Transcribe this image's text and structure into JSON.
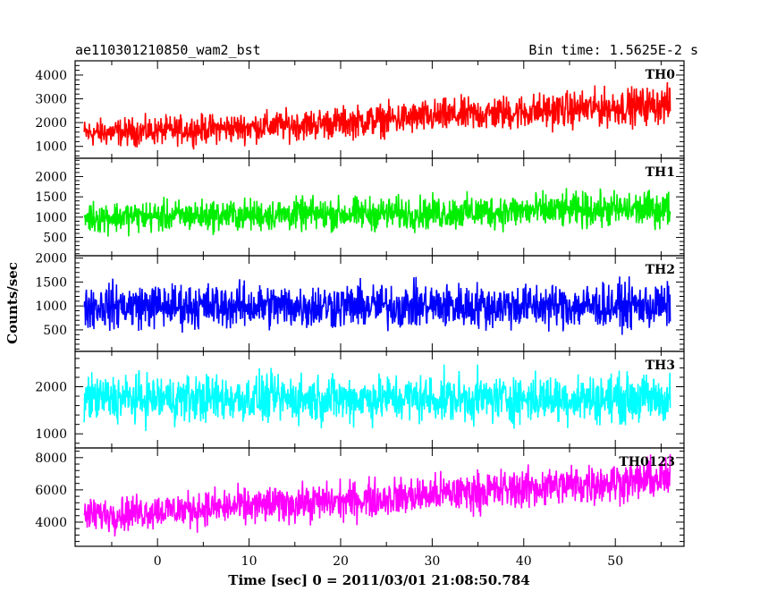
{
  "header": {
    "left_title": "ae110301210850_wam2_bst",
    "right_title": "Bin time: 1.5625E-2 s"
  },
  "chart_data": {
    "type": "line",
    "title": "ae110301210850_wam2_bst",
    "subtitle": "Bin time: 1.5625E-2 s",
    "xlabel": "Time [sec] 0 = 2011/03/01 21:08:50.784",
    "ylabel": "Counts/sec",
    "xlim": [
      -9,
      57.5
    ],
    "x_data_range": [
      -8,
      56
    ],
    "xticks": [
      0,
      10,
      20,
      30,
      40,
      50
    ],
    "grid": false,
    "legend": "none",
    "panels": [
      {
        "name": "TH0",
        "color": "#ff0000",
        "ylim": [
          500,
          4600
        ],
        "yticks": [
          1000,
          2000,
          3000,
          4000
        ],
        "x": [
          -8,
          0,
          10,
          20,
          30,
          40,
          50,
          56
        ],
        "mean": [
          1550,
          1650,
          1800,
          2000,
          2250,
          2450,
          2650,
          2750
        ],
        "spread": [
          750,
          750,
          800,
          850,
          900,
          950,
          1000,
          1000
        ]
      },
      {
        "name": "TH1",
        "color": "#00ee00",
        "ylim": [
          50,
          2450
        ],
        "yticks": [
          500,
          1000,
          1500,
          2000
        ],
        "x": [
          -8,
          0,
          10,
          20,
          30,
          40,
          50,
          56
        ],
        "mean": [
          1000,
          1020,
          1050,
          1080,
          1100,
          1150,
          1180,
          1200
        ],
        "spread": [
          500,
          500,
          500,
          520,
          530,
          550,
          560,
          560
        ]
      },
      {
        "name": "TH2",
        "color": "#0000ff",
        "ylim": [
          50,
          2050
        ],
        "yticks": [
          500,
          1000,
          1500,
          2000
        ],
        "x": [
          -8,
          0,
          10,
          20,
          30,
          40,
          50,
          56
        ],
        "mean": [
          1000,
          1000,
          1000,
          1000,
          1000,
          1000,
          1000,
          1000
        ],
        "spread": [
          600,
          600,
          600,
          600,
          600,
          600,
          600,
          600
        ]
      },
      {
        "name": "TH3",
        "color": "#00ffff",
        "ylim": [
          700,
          2750
        ],
        "yticks": [
          1000,
          2000
        ],
        "x": [
          -8,
          0,
          10,
          20,
          30,
          40,
          50,
          56
        ],
        "mean": [
          1750,
          1750,
          1750,
          1750,
          1750,
          1750,
          1750,
          1750
        ],
        "spread": [
          650,
          650,
          650,
          650,
          650,
          650,
          650,
          650
        ]
      },
      {
        "name": "TH0123",
        "color": "#ff00ff",
        "ylim": [
          2500,
          8600
        ],
        "yticks": [
          4000,
          6000,
          8000
        ],
        "x": [
          -8,
          0,
          10,
          20,
          30,
          40,
          50,
          56
        ],
        "mean": [
          4400,
          4700,
          5000,
          5300,
          5700,
          6100,
          6500,
          6700
        ],
        "spread": [
          1400,
          1400,
          1450,
          1500,
          1550,
          1600,
          1650,
          1650
        ]
      }
    ]
  }
}
